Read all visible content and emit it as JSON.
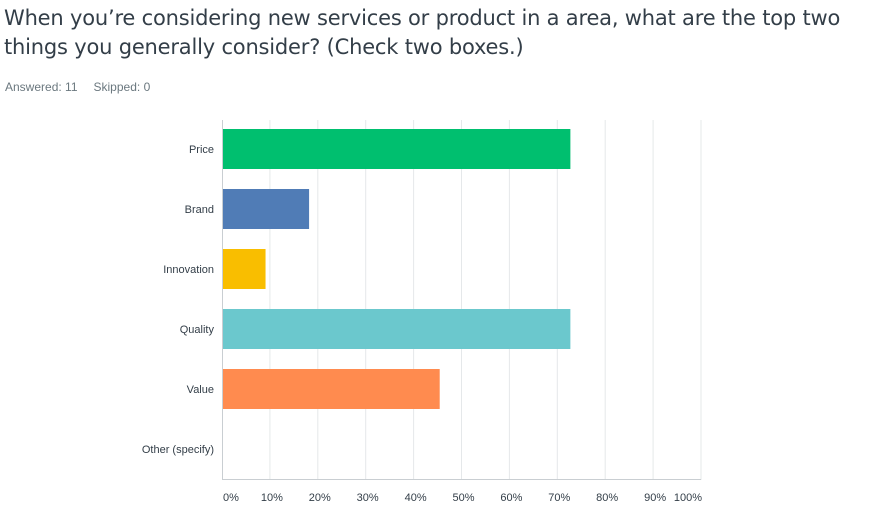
{
  "question": {
    "title": "When you’re considering new services or product in a area, what are the top two things you generally consider? (Check two boxes.)"
  },
  "stats": {
    "answered_label": "Answered:",
    "answered_value": "11",
    "skipped_label": "Skipped:",
    "skipped_value": "0"
  },
  "colors": {
    "text": "#333e48",
    "muted": "#6b787f",
    "grid": "#e5e8ea"
  },
  "chart_data": {
    "type": "bar",
    "orientation": "horizontal",
    "categories": [
      "Price",
      "Brand",
      "Innovation",
      "Quality",
      "Value",
      "Other (specify)"
    ],
    "values": [
      72.73,
      18.18,
      9.09,
      72.73,
      45.45,
      0
    ],
    "colors": [
      "#00bf6f",
      "#507cb6",
      "#f9be00",
      "#6bc8cd",
      "#ff8b4f",
      "#b0b0b0"
    ],
    "xticks": [
      "0%",
      "10%",
      "20%",
      "30%",
      "40%",
      "50%",
      "60%",
      "70%",
      "80%",
      "90%",
      "100%"
    ],
    "xlim": [
      0,
      100
    ],
    "grid": true,
    "legend": "none"
  }
}
